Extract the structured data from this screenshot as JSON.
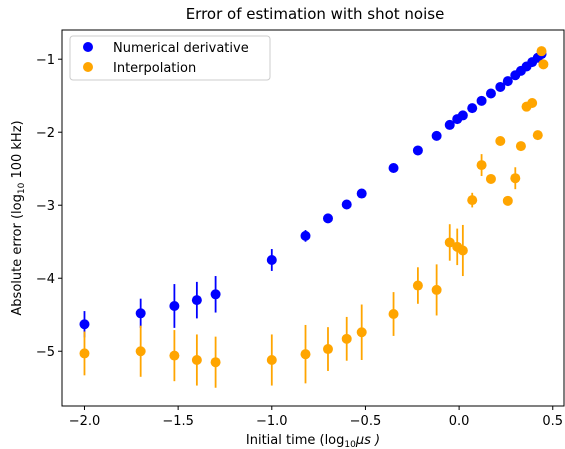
{
  "chart_data": {
    "type": "scatter",
    "title": "Error of estimation with shot noise",
    "xlabel_prefix": "Initial time (log",
    "xlabel_sub": "10",
    "xlabel_suffix": "μs )",
    "ylabel_prefix": "Absolute error (log",
    "ylabel_sub": "10",
    "ylabel_suffix": " 100 kHz)",
    "xlim": [
      -2.12,
      0.56
    ],
    "ylim": [
      -5.75,
      -0.6
    ],
    "xticks": [
      -2.0,
      -1.5,
      -1.0,
      -0.5,
      0.0,
      0.5
    ],
    "xtick_labels": [
      "−2.0",
      "−1.5",
      "−1.0",
      "−0.5",
      "0.0",
      "0.5"
    ],
    "yticks": [
      -1,
      -2,
      -3,
      -4,
      -5
    ],
    "ytick_labels": [
      "−1",
      "−2",
      "−3",
      "−4",
      "−5"
    ],
    "legend_position": "top-left",
    "series": [
      {
        "name": "Numerical derivative",
        "color": "#0000ff",
        "points": [
          {
            "x": -2.0,
            "y": -4.63,
            "err": 0.18
          },
          {
            "x": -1.7,
            "y": -4.48,
            "err": 0.2
          },
          {
            "x": -1.52,
            "y": -4.38,
            "err": 0.3
          },
          {
            "x": -1.4,
            "y": -4.3,
            "err": 0.25
          },
          {
            "x": -1.3,
            "y": -4.22,
            "err": 0.25
          },
          {
            "x": -1.0,
            "y": -3.75,
            "err": 0.15
          },
          {
            "x": -0.82,
            "y": -3.42,
            "err": 0.08
          },
          {
            "x": -0.7,
            "y": -3.18,
            "err": 0.03
          },
          {
            "x": -0.6,
            "y": -2.99,
            "err": 0.03
          },
          {
            "x": -0.52,
            "y": -2.84,
            "err": 0.02
          },
          {
            "x": -0.35,
            "y": -2.49,
            "err": 0.02
          },
          {
            "x": -0.22,
            "y": -2.25,
            "err": 0.02
          },
          {
            "x": -0.12,
            "y": -2.05,
            "err": 0.02
          },
          {
            "x": -0.05,
            "y": -1.9,
            "err": 0.02
          },
          {
            "x": -0.01,
            "y": -1.82,
            "err": 0.02
          },
          {
            "x": 0.02,
            "y": -1.77,
            "err": 0.02
          },
          {
            "x": 0.07,
            "y": -1.67,
            "err": 0.02
          },
          {
            "x": 0.12,
            "y": -1.57,
            "err": 0.02
          },
          {
            "x": 0.17,
            "y": -1.47,
            "err": 0.02
          },
          {
            "x": 0.22,
            "y": -1.38,
            "err": 0.02
          },
          {
            "x": 0.26,
            "y": -1.3,
            "err": 0.02
          },
          {
            "x": 0.3,
            "y": -1.22,
            "err": 0.02
          },
          {
            "x": 0.33,
            "y": -1.16,
            "err": 0.02
          },
          {
            "x": 0.36,
            "y": -1.1,
            "err": 0.02
          },
          {
            "x": 0.39,
            "y": -1.04,
            "err": 0.02
          },
          {
            "x": 0.42,
            "y": -0.98,
            "err": 0.02
          },
          {
            "x": 0.44,
            "y": -0.93,
            "err": 0.02
          }
        ]
      },
      {
        "name": "Interpolation",
        "color": "#ffa500",
        "points": [
          {
            "x": -2.0,
            "y": -5.03,
            "err": 0.3
          },
          {
            "x": -1.7,
            "y": -5.0,
            "err": 0.35
          },
          {
            "x": -1.52,
            "y": -5.06,
            "err": 0.35
          },
          {
            "x": -1.4,
            "y": -5.12,
            "err": 0.35
          },
          {
            "x": -1.3,
            "y": -5.15,
            "err": 0.35
          },
          {
            "x": -1.0,
            "y": -5.12,
            "err": 0.35
          },
          {
            "x": -0.82,
            "y": -5.04,
            "err": 0.4
          },
          {
            "x": -0.7,
            "y": -4.97,
            "err": 0.3
          },
          {
            "x": -0.6,
            "y": -4.83,
            "err": 0.3
          },
          {
            "x": -0.52,
            "y": -4.74,
            "err": 0.38
          },
          {
            "x": -0.35,
            "y": -4.49,
            "err": 0.3
          },
          {
            "x": -0.22,
            "y": -4.1,
            "err": 0.25
          },
          {
            "x": -0.12,
            "y": -4.16,
            "err": 0.35
          },
          {
            "x": -0.05,
            "y": -3.51,
            "err": 0.25
          },
          {
            "x": -0.01,
            "y": -3.57,
            "err": 0.25
          },
          {
            "x": 0.02,
            "y": -3.62,
            "err": 0.35
          },
          {
            "x": 0.07,
            "y": -2.93,
            "err": 0.1
          },
          {
            "x": 0.12,
            "y": -2.45,
            "err": 0.15
          },
          {
            "x": 0.17,
            "y": -2.64,
            "err": 0.05
          },
          {
            "x": 0.22,
            "y": -2.12,
            "err": 0.05
          },
          {
            "x": 0.26,
            "y": -2.94,
            "err": 0.05
          },
          {
            "x": 0.3,
            "y": -2.63,
            "err": 0.15
          },
          {
            "x": 0.33,
            "y": -2.19,
            "err": 0.05
          },
          {
            "x": 0.36,
            "y": -1.65,
            "err": 0.05
          },
          {
            "x": 0.39,
            "y": -1.6,
            "err": 0.05
          },
          {
            "x": 0.42,
            "y": -2.04,
            "err": 0.05
          },
          {
            "x": 0.44,
            "y": -0.89,
            "err": 0.05
          },
          {
            "x": 0.45,
            "y": -1.07,
            "err": 0.05
          }
        ]
      }
    ]
  }
}
